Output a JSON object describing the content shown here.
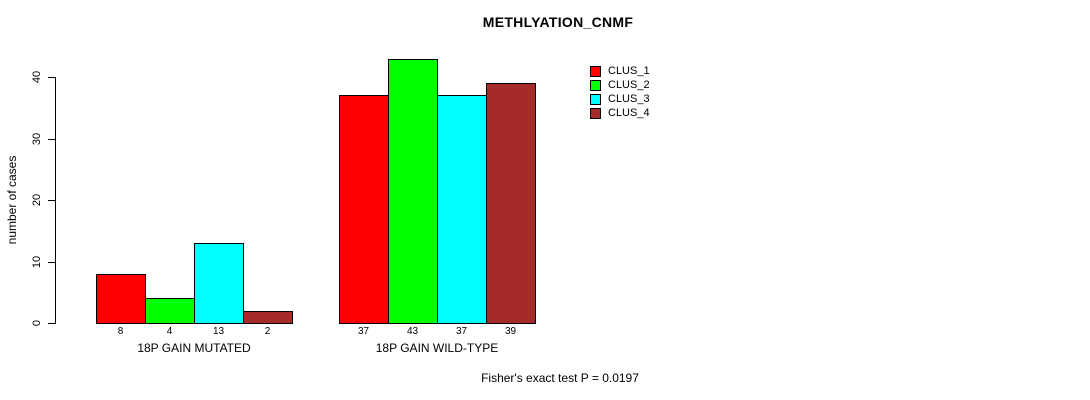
{
  "chart_data": {
    "type": "bar",
    "title": "METHLYATION_CNMF",
    "ylabel": "number of cases",
    "xlabel": "",
    "ylim": [
      0,
      40
    ],
    "yticks": [
      0,
      10,
      20,
      30,
      40
    ],
    "grid": false,
    "legend_position": "top-right",
    "categories": [
      "18P GAIN MUTATED",
      "18P GAIN WILD-TYPE"
    ],
    "series": [
      {
        "name": "CLUS_1",
        "color": "#FF0000",
        "values": [
          8,
          37
        ]
      },
      {
        "name": "CLUS_2",
        "color": "#00FF00",
        "values": [
          4,
          43
        ]
      },
      {
        "name": "CLUS_3",
        "color": "#00FFFF",
        "values": [
          13,
          37
        ]
      },
      {
        "name": "CLUS_4",
        "color": "#A52A2A",
        "values": [
          2,
          39
        ]
      }
    ],
    "bar_value_labels": [
      [
        8,
        4,
        13,
        2
      ],
      [
        37,
        43,
        37,
        39
      ]
    ],
    "annotation": "Fisher's exact test P = 0.0197"
  },
  "colors": {
    "axis": "#000000",
    "background": "#FFFFFF",
    "text": "#000000"
  }
}
